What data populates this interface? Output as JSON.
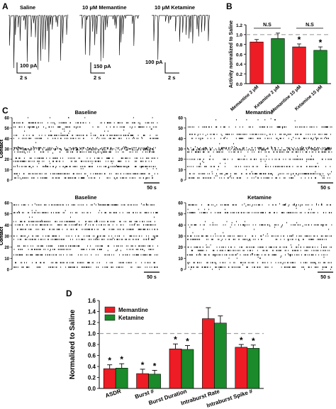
{
  "panel_letters": [
    "A",
    "B",
    "C",
    "D"
  ],
  "panel_a": {
    "traces": [
      {
        "title": "Saline",
        "scale_current": "100 pA",
        "scale_time": "2 s"
      },
      {
        "title": "10 μM Memantine",
        "scale_current": "150 pA",
        "scale_time": "2 s"
      },
      {
        "title": "10 μM Ketamine",
        "scale_current": "100 pA",
        "scale_time": "2 s"
      }
    ]
  },
  "panel_c": {
    "ylabel": "Contact",
    "yticks": [
      "0",
      "10",
      "20",
      "30",
      "40",
      "50",
      "60"
    ],
    "scale_time": "50 s",
    "rasters": [
      {
        "title": "Baseline"
      },
      {
        "title": "Memantine"
      },
      {
        "title": "Baseline"
      },
      {
        "title": "Ketamine"
      }
    ]
  },
  "colors": {
    "memantine": "#ee1c24",
    "ketamine": "#1a8a2a",
    "reference_line": "#a0a0a0"
  },
  "chart_data": [
    {
      "id": "B",
      "type": "bar",
      "ylabel": "Activity normalized to Saline",
      "ylim": [
        0,
        1.2
      ],
      "yticks": [
        "0.0",
        "0.2",
        "0.4",
        "0.6",
        "0.8",
        "1.0",
        "1.2"
      ],
      "reference_line": 1.0,
      "grid": false,
      "categories": [
        "Memantine 2 μM",
        "Ketamine 2 μM",
        "Memantine 10 μM",
        "Ketamine 10 μM"
      ],
      "values": [
        0.85,
        0.92,
        0.75,
        0.68
      ],
      "errors": [
        0.05,
        0.11,
        0.06,
        0.07
      ],
      "bar_colors": [
        "#ee1c24",
        "#1a8a2a",
        "#ee1c24",
        "#1a8a2a"
      ],
      "significance": [
        "",
        "",
        "*",
        "*"
      ],
      "brackets": [
        {
          "from": 0,
          "to": 1,
          "label": "N.S"
        },
        {
          "from": 2,
          "to": 3,
          "label": "N.S"
        }
      ]
    },
    {
      "id": "D",
      "type": "bar",
      "ylabel": "Normalized to Saline",
      "ylim": [
        0,
        1.6
      ],
      "yticks": [
        "0.0",
        "0.2",
        "0.4",
        "0.6",
        "0.8",
        "1.0",
        "1.2",
        "1.4",
        "1.6"
      ],
      "reference_line": 1.0,
      "grid": false,
      "legend_position": "top-left",
      "categories": [
        "ASDR",
        "Burst #",
        "Burst Duration",
        "Intraburst Rate",
        "Intraburst Spike #"
      ],
      "series": [
        {
          "name": "Memantine",
          "color": "#ee1c24",
          "values": [
            0.36,
            0.27,
            0.72,
            1.27,
            0.75
          ],
          "errors": [
            0.07,
            0.08,
            0.09,
            0.2,
            0.05
          ],
          "significance": [
            "*",
            "*",
            "*",
            "",
            "*"
          ]
        },
        {
          "name": "Ketamine",
          "color": "#1a8a2a",
          "values": [
            0.37,
            0.26,
            0.71,
            1.19,
            0.73
          ],
          "errors": [
            0.08,
            0.07,
            0.07,
            0.13,
            0.06
          ],
          "significance": [
            "*",
            "*",
            "*",
            "",
            "*"
          ]
        }
      ]
    }
  ]
}
